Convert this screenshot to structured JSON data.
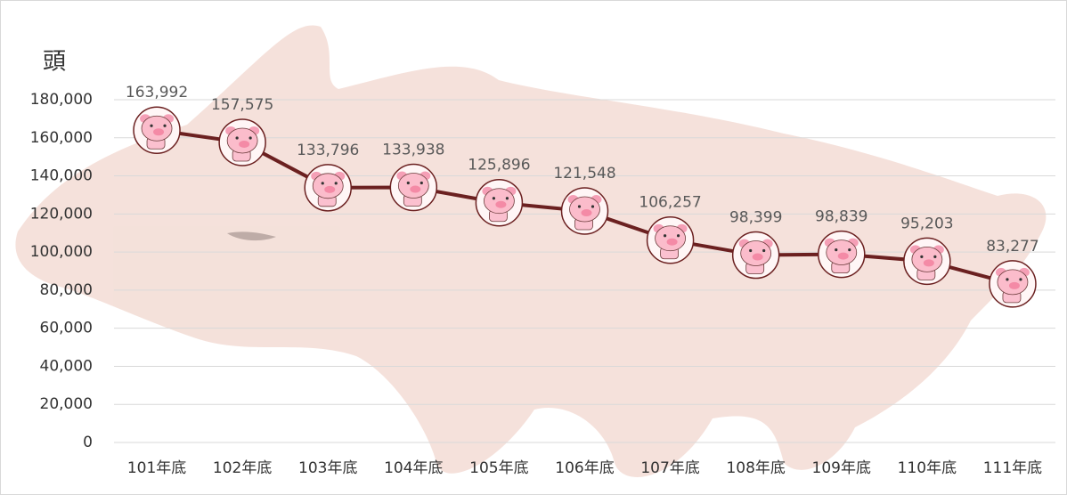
{
  "chart_data": {
    "type": "line",
    "y_axis_label": "頭",
    "categories": [
      "101年底",
      "102年底",
      "103年底",
      "104年底",
      "105年底",
      "106年底",
      "107年底",
      "108年底",
      "109年底",
      "110年底",
      "111年底"
    ],
    "values": [
      163992,
      157575,
      133796,
      133938,
      125896,
      121548,
      106257,
      98399,
      98839,
      95203,
      83277
    ],
    "value_labels": [
      "163,992",
      "157,575",
      "133,796",
      "133,938",
      "125,896",
      "121,548",
      "106,257",
      "98,399",
      "98,839",
      "95,203",
      "83,277"
    ],
    "color": "#6b2020",
    "ylim": [
      0,
      180000
    ],
    "yticks": [
      {
        "value": 0,
        "label": "0"
      },
      {
        "value": 20000,
        "label": "20,000"
      },
      {
        "value": 40000,
        "label": "40,000"
      },
      {
        "value": 60000,
        "label": "60,000"
      },
      {
        "value": 80000,
        "label": "80,000"
      },
      {
        "value": 100000,
        "label": "100,000"
      },
      {
        "value": 120000,
        "label": "120,000"
      },
      {
        "value": 140000,
        "label": "140,000"
      },
      {
        "value": 160000,
        "label": "160,000"
      },
      {
        "value": 180000,
        "label": "180,000"
      }
    ],
    "grid": true
  }
}
